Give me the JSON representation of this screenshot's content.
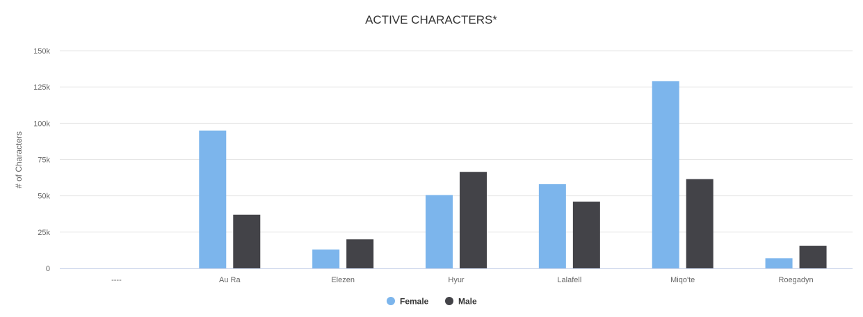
{
  "chart_data": {
    "type": "bar",
    "title": "ACTIVE CHARACTERS*",
    "xlabel": "",
    "ylabel": "# of Characters",
    "ylim": [
      0,
      150000
    ],
    "yticks": [
      {
        "value": 0,
        "label": "0"
      },
      {
        "value": 25000,
        "label": "25k"
      },
      {
        "value": 50000,
        "label": "50k"
      },
      {
        "value": 75000,
        "label": "75k"
      },
      {
        "value": 100000,
        "label": "100k"
      },
      {
        "value": 125000,
        "label": "125k"
      },
      {
        "value": 150000,
        "label": "150k"
      }
    ],
    "grid": true,
    "legend_position": "bottom-center",
    "categories": [
      "----",
      "Au Ra",
      "Elezen",
      "Hyur",
      "Lalafell",
      "Miqo'te",
      "Roegadyn"
    ],
    "series": [
      {
        "name": "Female",
        "color": "#7cb5ec",
        "values": [
          0,
          95000,
          13000,
          50500,
          58000,
          129000,
          7000
        ]
      },
      {
        "name": "Male",
        "color": "#434348",
        "values": [
          0,
          37000,
          20000,
          66500,
          46000,
          61500,
          15500
        ]
      }
    ]
  }
}
